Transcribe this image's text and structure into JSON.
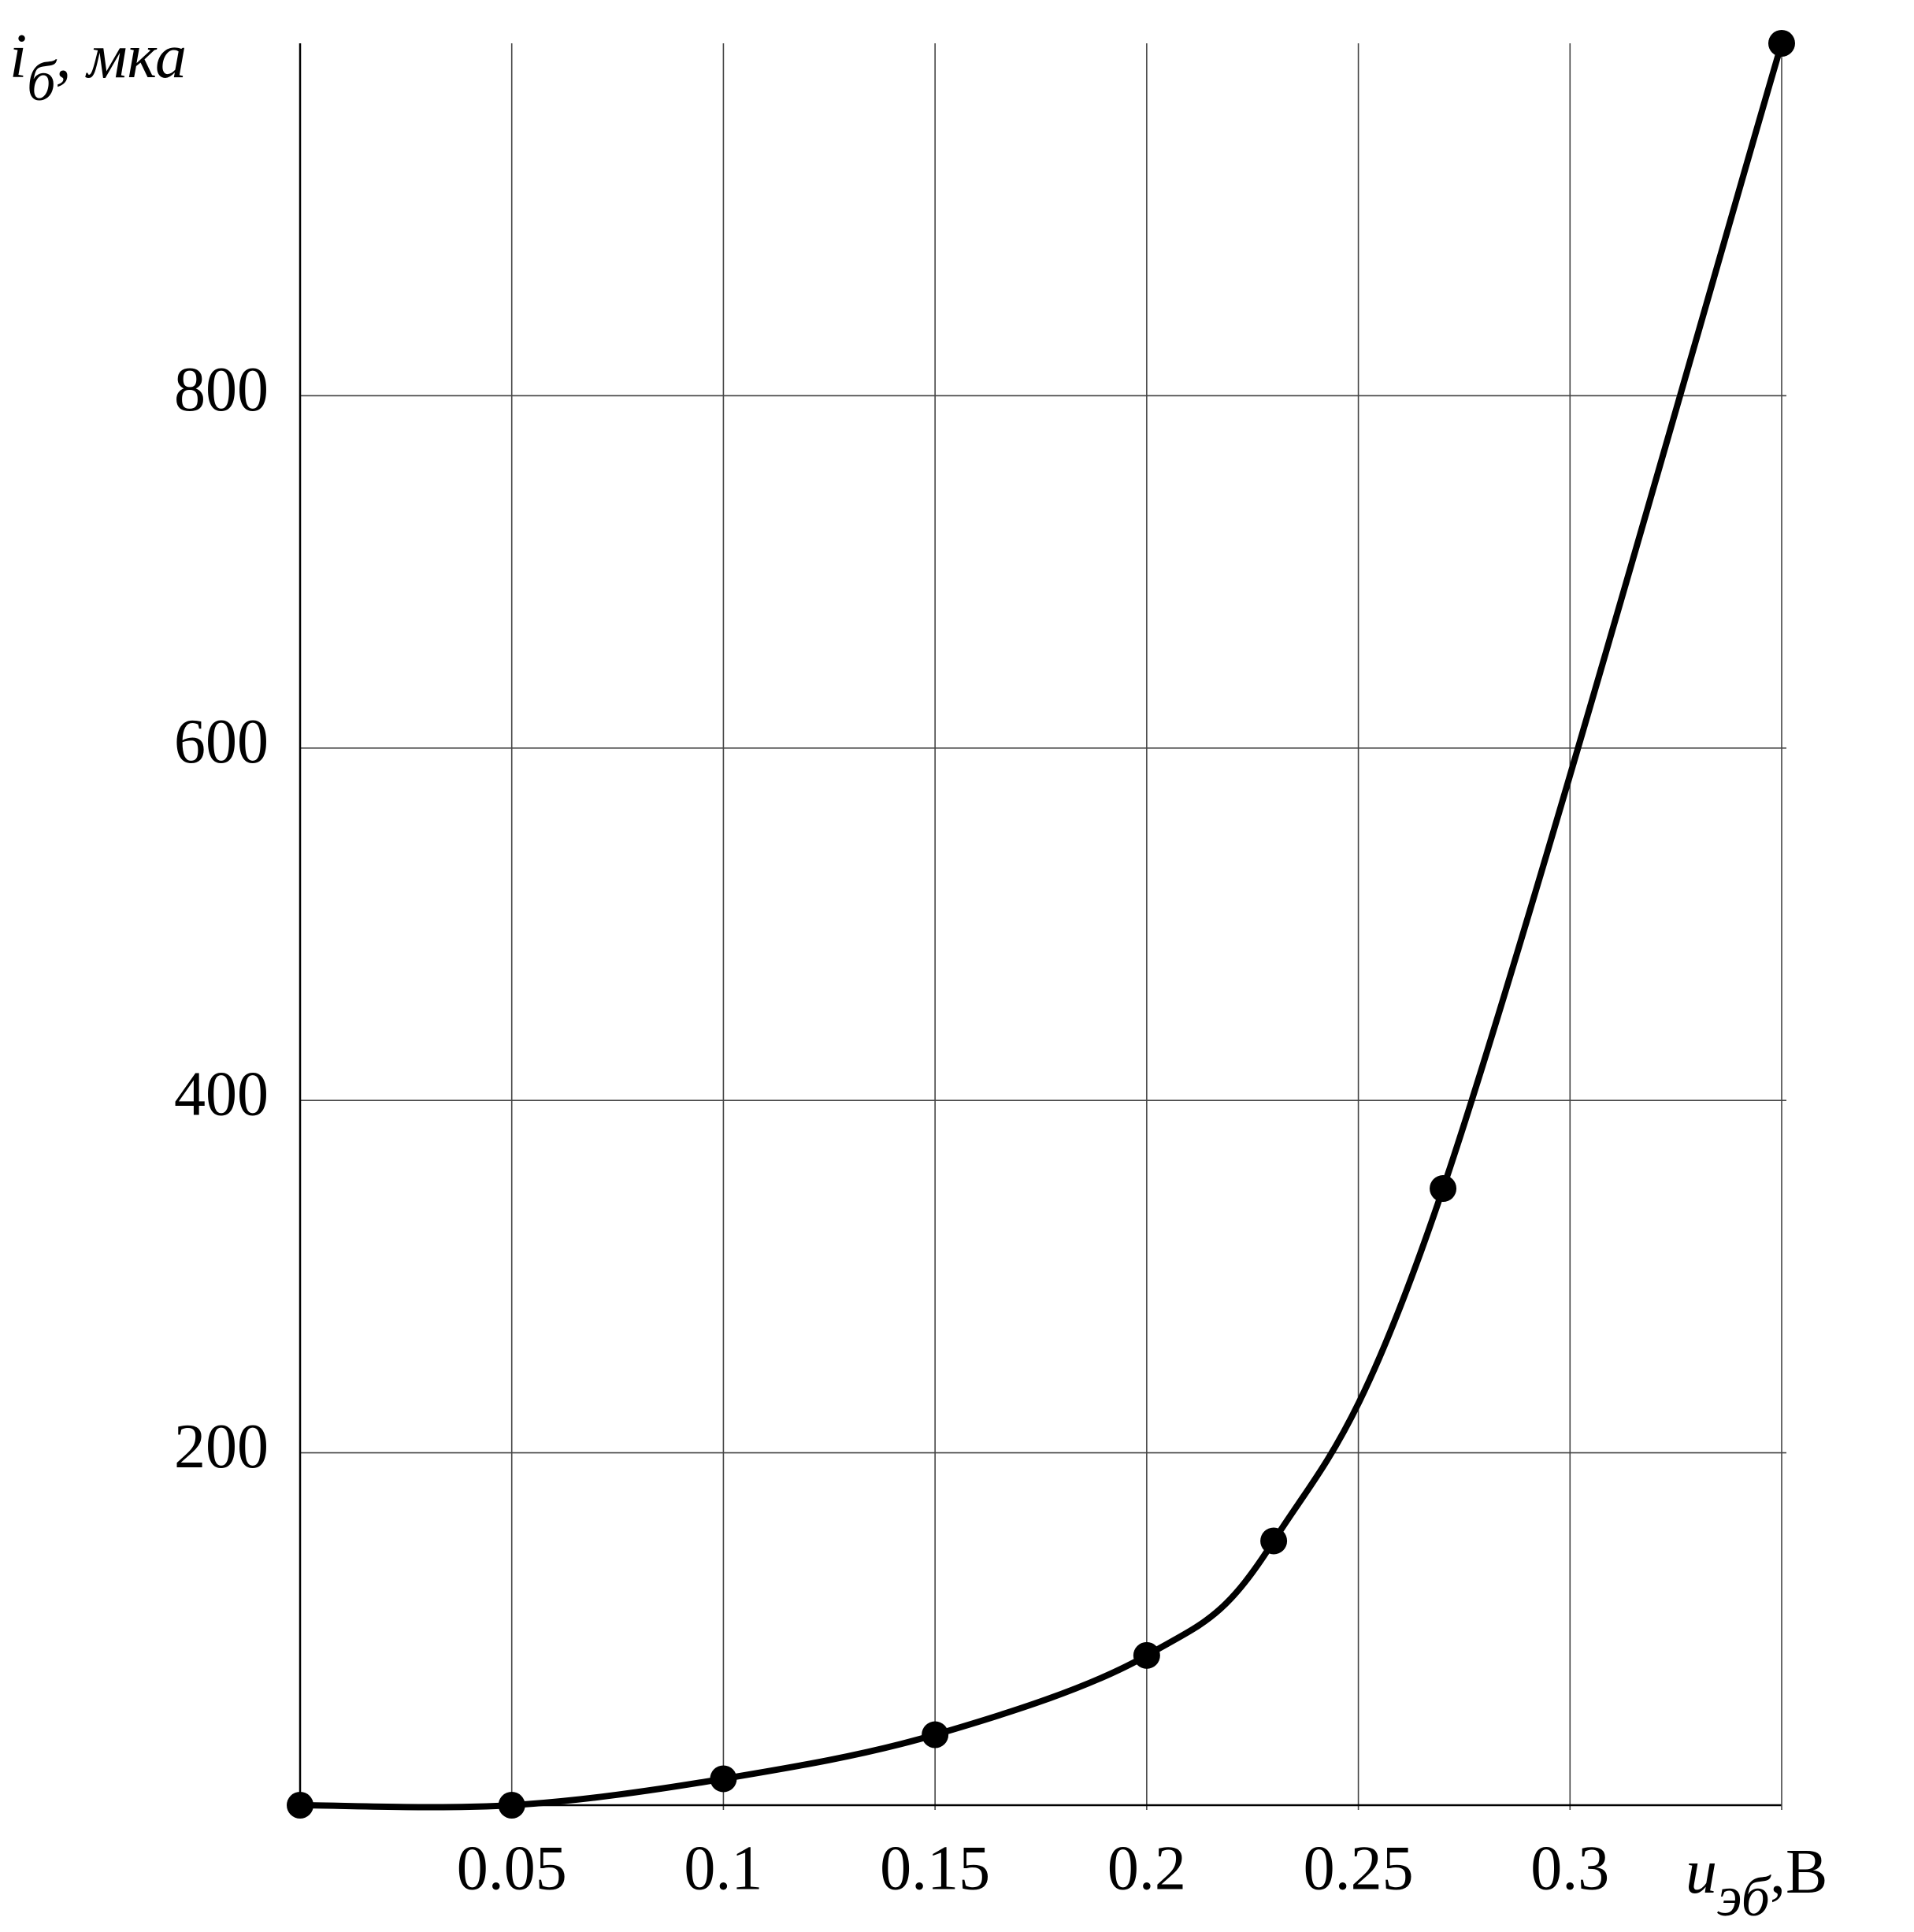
{
  "chart_data": {
    "type": "line",
    "ylabel": [
      "i",
      "б",
      ", мка"
    ],
    "xlabel": [
      "u",
      "эб",
      ",В"
    ],
    "x": [
      0,
      0.05,
      0.1,
      0.15,
      0.2,
      0.23,
      0.27,
      0.35
    ],
    "series": [
      {
        "color": "#000000",
        "values": [
          0,
          0,
          15,
          40,
          85,
          150,
          350,
          1000
        ]
      }
    ],
    "xlim": [
      0,
      0.35
    ],
    "ylim": [
      0,
      1000
    ],
    "xticks": [
      0.05,
      0.1,
      0.15,
      0.2,
      0.25,
      0.3
    ],
    "yticks": [
      200,
      400,
      600,
      800
    ],
    "grid": true,
    "markers": true
  }
}
